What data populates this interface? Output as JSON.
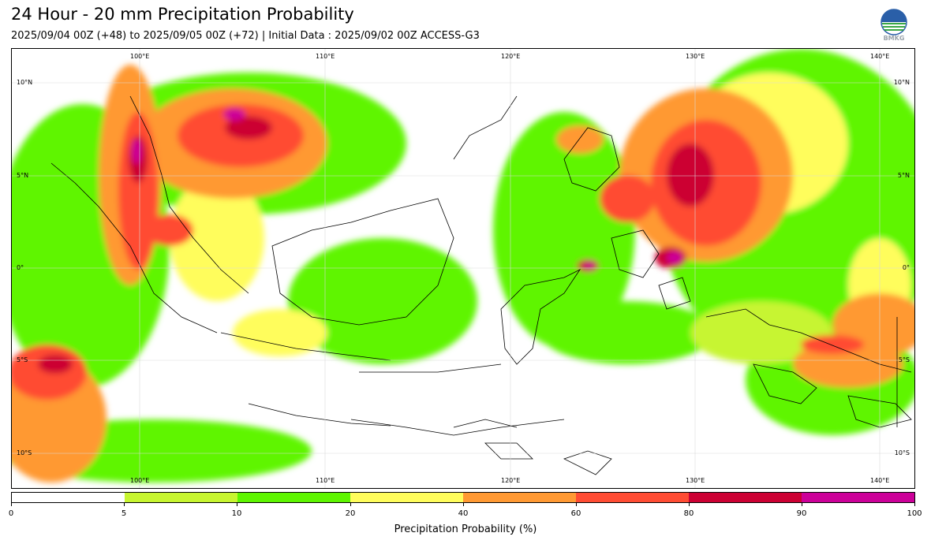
{
  "header": {
    "title": "24 Hour - 20 mm Precipitation Probability",
    "subtitle": "2025/09/04 00Z (+48) to 2025/09/05 00Z (+72) | Initial Data : 2025/09/02 00Z ACCESS-G3",
    "logo_text": "BMKG"
  },
  "map": {
    "lon_labels_top": [
      "100°E",
      "110°E",
      "120°E",
      "130°E",
      "140°E"
    ],
    "lon_labels_bottom": [
      "100°E",
      "110°E",
      "120°E",
      "130°E",
      "140°E"
    ],
    "lat_labels_left": [
      "10°N",
      "5°N",
      "0°",
      "5°S",
      "10°S"
    ],
    "lat_labels_right": [
      "10°N",
      "5°N",
      "0°",
      "5°S",
      "10°S"
    ]
  },
  "colorbar": {
    "ticks": [
      "0",
      "5",
      "10",
      "20",
      "40",
      "60",
      "80",
      "90",
      "100"
    ],
    "colors": [
      "#ffffff",
      "#c7f530",
      "#5ef500",
      "#fffd5c",
      "#ff9933",
      "#ff4c33",
      "#cc0033",
      "#cc0099"
    ],
    "label": "Precipitation Probability (%)"
  }
}
